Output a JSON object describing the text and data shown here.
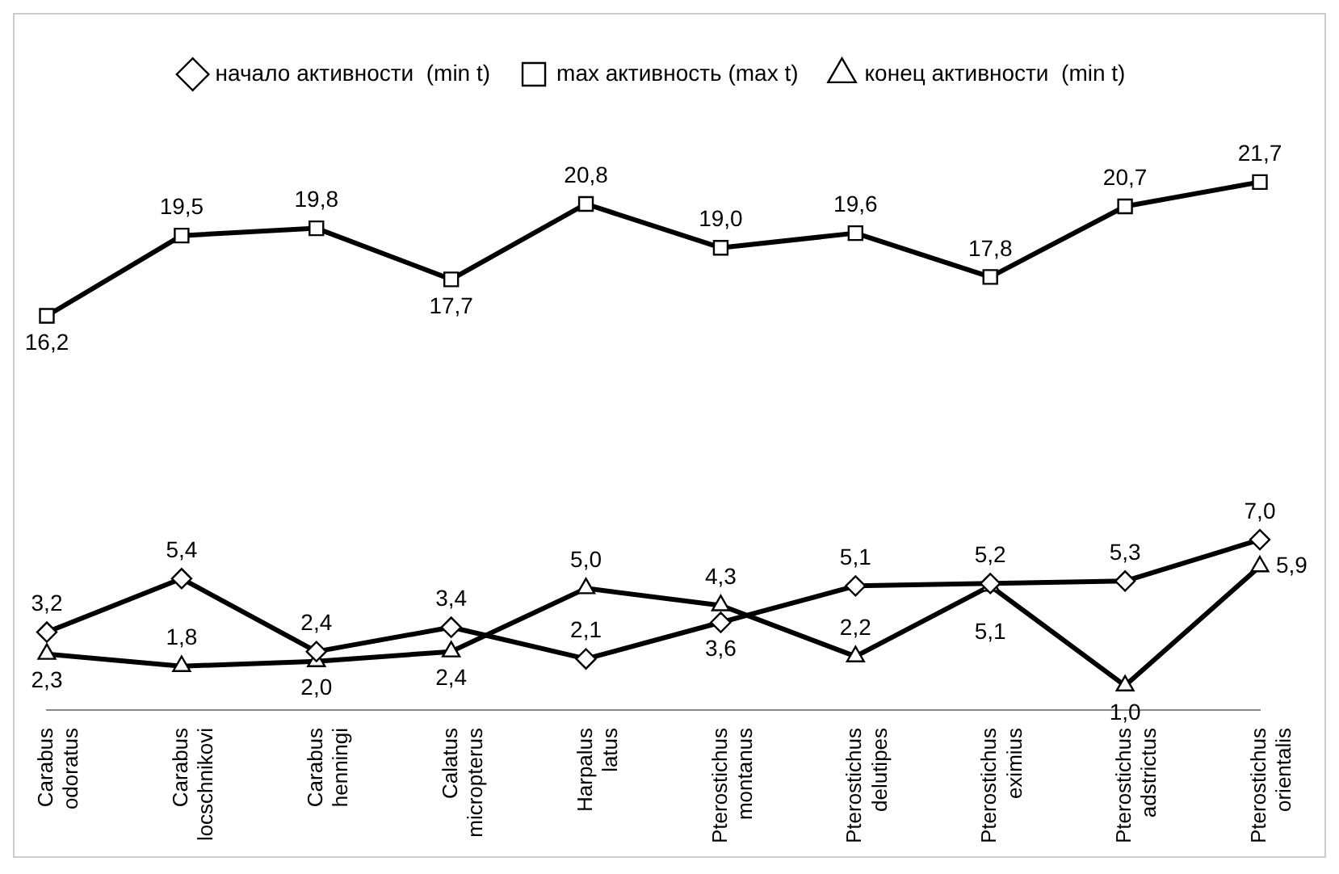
{
  "chart_data": {
    "type": "line",
    "categories": [
      "Carabus odoratus",
      "Carabus locschnikovi",
      "Carabus henningi",
      "Calatus micropterus",
      "Harpalus latus",
      "Pterostichus montanus",
      "Pterostichus delutipes",
      "Pterostichus eximius",
      "Pterostichus adstrictus",
      "Pterostichus orientalis"
    ],
    "series": [
      {
        "name": "начало активности  (min t)",
        "color": "#000000",
        "marker": "diamond",
        "values": [
          3.2,
          5.4,
          2.4,
          3.4,
          2.1,
          3.6,
          5.1,
          5.2,
          5.3,
          7.0
        ],
        "value_labels": [
          "3,2",
          "5,4",
          "2,4",
          "3,4",
          "2,1",
          "3,6",
          "5,1",
          "5,2",
          "5,3",
          "7,0"
        ]
      },
      {
        "name": "max активность (max t)",
        "color": "#000000",
        "marker": "square",
        "values": [
          16.2,
          19.5,
          19.8,
          17.7,
          20.8,
          19.0,
          19.6,
          17.8,
          20.7,
          21.7
        ],
        "value_labels": [
          "16,2",
          "19,5",
          "19,8",
          "17,7",
          "20,8",
          "19,0",
          "19,6",
          "17,8",
          "20,7",
          "21,7"
        ]
      },
      {
        "name": "конец активности  (min t)",
        "color": "#000000",
        "marker": "triangle",
        "values": [
          2.3,
          1.8,
          2.0,
          2.4,
          5.0,
          4.3,
          2.2,
          5.1,
          1.0,
          5.9
        ],
        "value_labels": [
          "2,3",
          "1,8",
          "2,0",
          "2,4",
          "5,0",
          "4,3",
          "2,2",
          "5,1",
          "1,0",
          "5,9"
        ]
      }
    ],
    "legend": "top",
    "line_style": "solid"
  }
}
